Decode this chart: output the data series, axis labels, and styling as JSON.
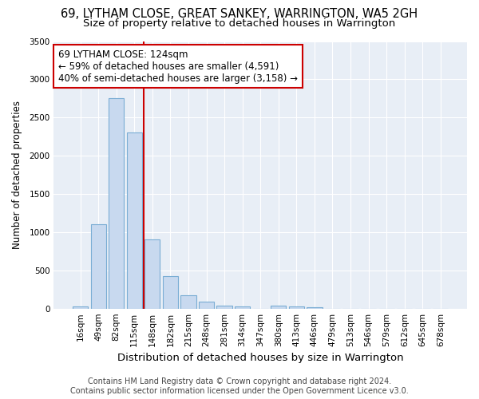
{
  "title": "69, LYTHAM CLOSE, GREAT SANKEY, WARRINGTON, WA5 2GH",
  "subtitle": "Size of property relative to detached houses in Warrington",
  "xlabel": "Distribution of detached houses by size in Warrington",
  "ylabel": "Number of detached properties",
  "footer_line1": "Contains HM Land Registry data © Crown copyright and database right 2024.",
  "footer_line2": "Contains public sector information licensed under the Open Government Licence v3.0.",
  "bin_labels": [
    "16sqm",
    "49sqm",
    "82sqm",
    "115sqm",
    "148sqm",
    "182sqm",
    "215sqm",
    "248sqm",
    "281sqm",
    "314sqm",
    "347sqm",
    "380sqm",
    "413sqm",
    "446sqm",
    "479sqm",
    "513sqm",
    "546sqm",
    "579sqm",
    "612sqm",
    "645sqm",
    "678sqm"
  ],
  "bar_heights": [
    30,
    1100,
    2750,
    2300,
    900,
    420,
    175,
    90,
    40,
    30,
    0,
    35,
    25,
    20,
    0,
    0,
    0,
    0,
    0,
    0,
    0
  ],
  "bar_color": "#c8d9ef",
  "bar_edge_color": "#7aadd4",
  "ylim": [
    0,
    3500
  ],
  "yticks": [
    0,
    500,
    1000,
    1500,
    2000,
    2500,
    3000,
    3500
  ],
  "red_line_x": 3.5,
  "annotation_text": "69 LYTHAM CLOSE: 124sqm\n← 59% of detached houses are smaller (4,591)\n40% of semi-detached houses are larger (3,158) →",
  "annotation_box_color": "#ffffff",
  "annotation_border_color": "#cc0000",
  "red_line_color": "#cc0000",
  "bg_color": "#ffffff",
  "plot_bg_color": "#e8eef6",
  "grid_color": "#ffffff",
  "title_fontsize": 10.5,
  "subtitle_fontsize": 9.5,
  "xlabel_fontsize": 9.5,
  "ylabel_fontsize": 8.5,
  "tick_fontsize": 7.5,
  "footer_fontsize": 7.0,
  "annotation_fontsize": 8.5
}
